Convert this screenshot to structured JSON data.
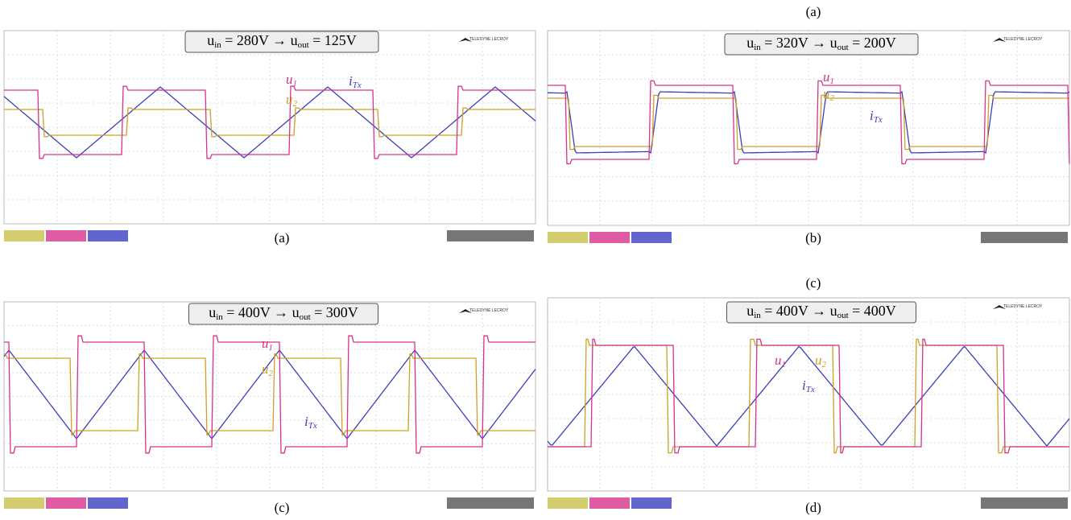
{
  "panels": [
    {
      "caption": "(a)",
      "annotation": [
        "u",
        "in",
        " = 280V → u",
        "out",
        " = 125V"
      ],
      "traces": [
        {
          "name": "u",
          "sub": "1",
          "color": "#d6338a"
        },
        {
          "name": "u",
          "sub": "2",
          "color": "#c9a227"
        },
        {
          "name": "i",
          "sub": "Tx",
          "color": "#3a3fc0"
        }
      ]
    },
    {
      "caption": "(b)",
      "annotation": [
        "u",
        "in",
        " = 320V → u",
        "out",
        " = 200V"
      ],
      "traces": [
        {
          "name": "u",
          "sub": "1",
          "color": "#d6338a"
        },
        {
          "name": "u",
          "sub": "2",
          "color": "#c9a227"
        },
        {
          "name": "i",
          "sub": "Tx",
          "color": "#3a3fc0"
        }
      ]
    },
    {
      "caption": "(c)",
      "annotation": [
        "u",
        "in",
        " = 400V → u",
        "out",
        " = 300V"
      ],
      "traces": [
        {
          "name": "u",
          "sub": "1",
          "color": "#d6338a"
        },
        {
          "name": "u",
          "sub": "2",
          "color": "#c9a227"
        },
        {
          "name": "i",
          "sub": "Tx",
          "color": "#3a3fc0"
        }
      ]
    },
    {
      "caption": "(d)",
      "annotation": [
        "u",
        "in",
        " = 400V → u",
        "out",
        " = 400V"
      ],
      "traces": [
        {
          "name": "u",
          "sub": "1",
          "color": "#d6338a"
        },
        {
          "name": "u",
          "sub": "2",
          "color": "#c9a227"
        },
        {
          "name": "i",
          "sub": "Tx",
          "color": "#3a3fc0"
        }
      ]
    }
  ],
  "extra_captions": [
    "(a)",
    "(c)"
  ],
  "brand": "TELEDYNE LECROY"
}
